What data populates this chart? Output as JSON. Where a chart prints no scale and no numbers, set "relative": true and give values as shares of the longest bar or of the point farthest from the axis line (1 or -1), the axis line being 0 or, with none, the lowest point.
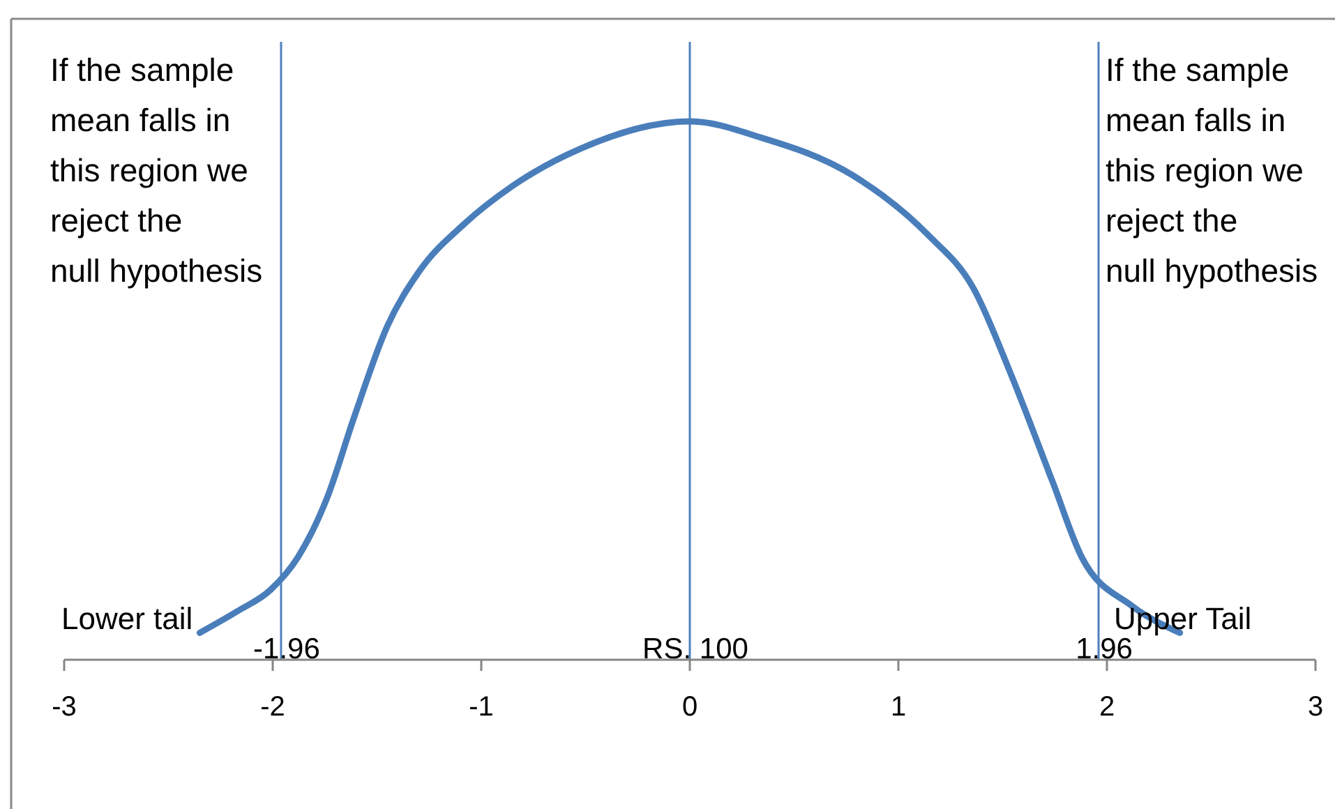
{
  "chart_data": {
    "type": "line",
    "relative": true,
    "x": [
      -2.35,
      -2.17,
      -2.01,
      -1.88,
      -1.74,
      -1.61,
      -1.45,
      -1.3,
      -1.08,
      -0.85,
      -0.52,
      0,
      0.34,
      0.78,
      1.14,
      1.36,
      1.54,
      1.74,
      1.88,
      2.12,
      2.35
    ],
    "series": [
      {
        "color": "#4a7ebb",
        "values": [
          0.05,
          0.09,
          0.13,
          0.19,
          0.3,
          0.45,
          0.62,
          0.72,
          0.81,
          0.88,
          0.95,
          1,
          0.97,
          0.9,
          0.79,
          0.69,
          0.53,
          0.33,
          0.19,
          0.1,
          0.05
        ]
      }
    ],
    "xlim": [
      -3,
      3
    ],
    "xticks": [
      -3,
      -2,
      -1,
      0,
      1,
      2,
      3
    ],
    "ref_lines": [
      {
        "axis": "x",
        "value": -1.96,
        "label": "-1.96",
        "color": "#4f81bd"
      },
      {
        "axis": "x",
        "value": 0,
        "label": "RS. 100",
        "color": "#4f81bd"
      },
      {
        "axis": "x",
        "value": 1.96,
        "label": "1.96",
        "color": "#4f81bd"
      }
    ],
    "annotations": [
      "If the sample\nmean falls in\nthis region we\nreject the\nnull hypothesis",
      "If the sample\nmean falls in\nthis region we\nreject the\nnull hypothesis",
      "Lower tail",
      "Upper Tail"
    ]
  }
}
